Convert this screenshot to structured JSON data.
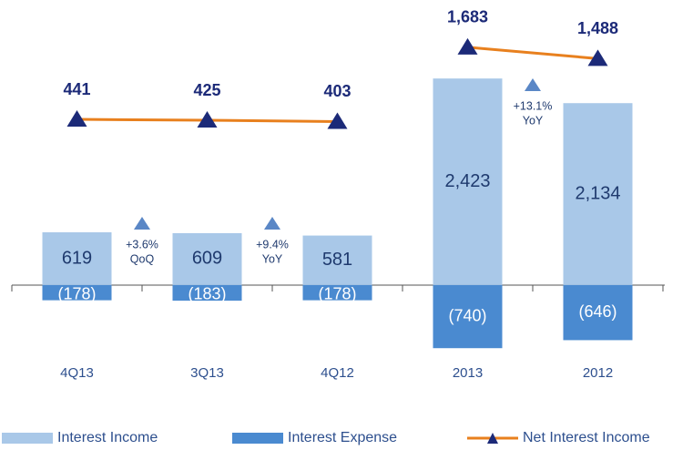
{
  "chart_data": [
    {
      "type": "bar",
      "categories": [
        "4Q13",
        "3Q13",
        "4Q12"
      ],
      "series": [
        {
          "name": "Interest Income",
          "color": "#a9c8e8",
          "values": [
            619,
            609,
            581
          ]
        },
        {
          "name": "Interest Expense",
          "color": "#4a8ad0",
          "values": [
            -178,
            -183,
            -178
          ],
          "value_labels": [
            "(178)",
            "(183)",
            "(178)"
          ]
        },
        {
          "name": "Net Interest Income",
          "type": "line",
          "axis": "y2",
          "color": "#e8801e",
          "marker_color": "#1c2a78",
          "values": [
            441,
            425,
            403
          ]
        }
      ],
      "annotations": [
        [
          "+3.6%",
          "QoQ"
        ],
        [
          "+9.4%",
          "YoY"
        ]
      ],
      "ylim": [
        -930,
        3130
      ],
      "y2lim": [
        -3782,
        2184
      ]
    },
    {
      "type": "bar",
      "categories": [
        "2013",
        "2012"
      ],
      "series": [
        {
          "name": "Interest Income",
          "color": "#a9c8e8",
          "values": [
            2423,
            2134
          ],
          "value_labels": [
            "2,423",
            "2,134"
          ]
        },
        {
          "name": "Interest Expense",
          "color": "#4a8ad0",
          "values": [
            -740,
            -646
          ],
          "value_labels": [
            "(740)",
            "(646)"
          ]
        },
        {
          "name": "Net Interest Income",
          "type": "line",
          "axis": "y2",
          "color": "#e8801e",
          "marker_color": "#1c2a78",
          "values": [
            1683,
            1488
          ],
          "value_labels": [
            "1,683",
            "1,488"
          ]
        }
      ],
      "annotations": [
        [
          "+13.1%",
          "YoY"
        ]
      ],
      "ylim": [
        -930,
        3130
      ],
      "y2lim": [
        -3782,
        2184
      ]
    }
  ]
}
